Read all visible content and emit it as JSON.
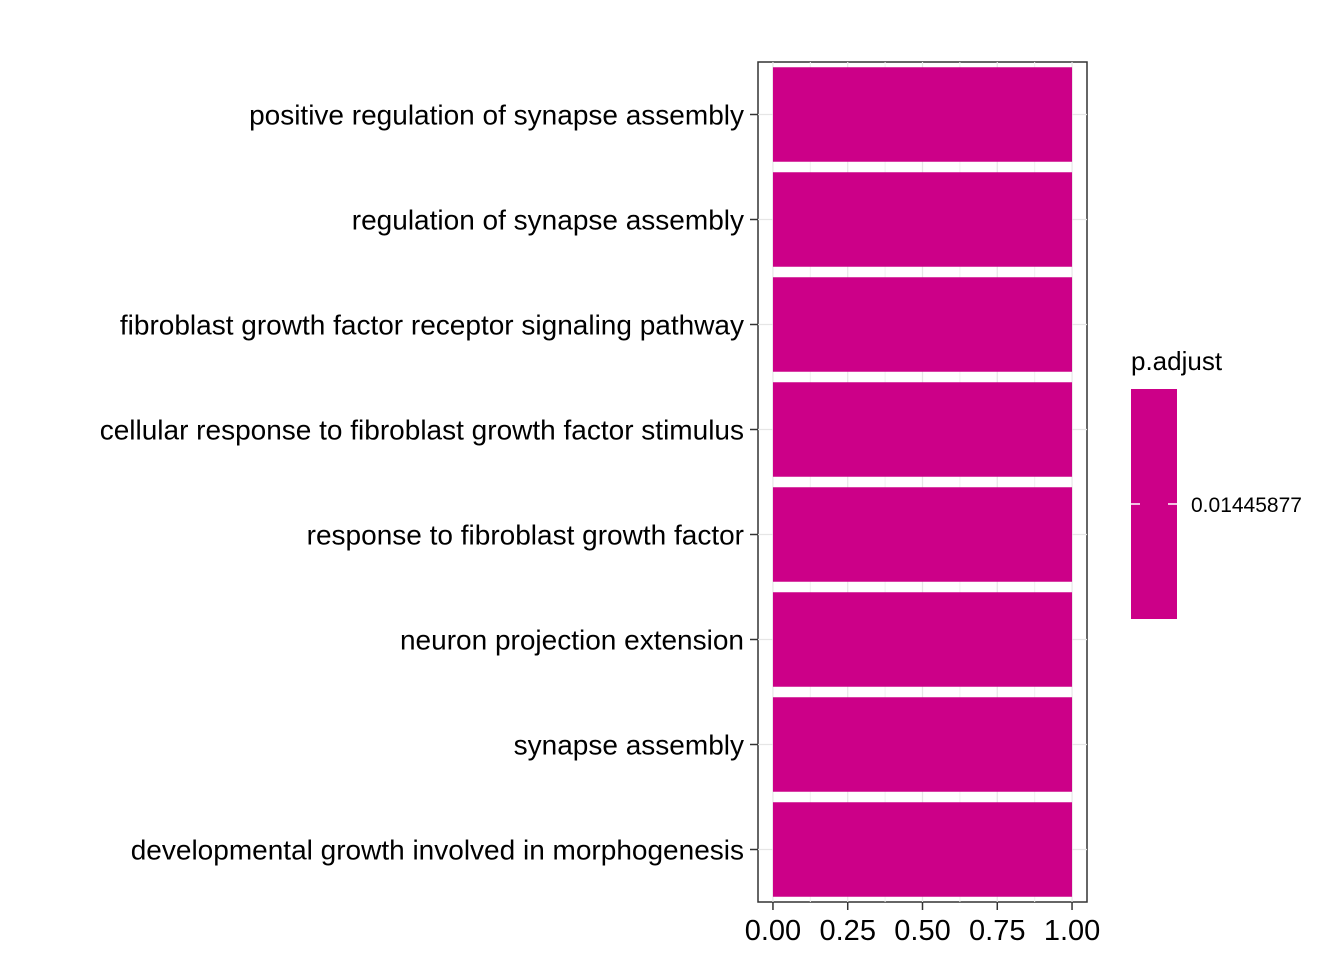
{
  "chart_data": {
    "type": "bar",
    "orientation": "horizontal",
    "categories": [
      "positive regulation of synapse assembly",
      "regulation of synapse assembly",
      "fibroblast growth factor receptor signaling pathway",
      "cellular response to fibroblast growth factor stimulus",
      "response to fibroblast growth factor",
      "neuron projection extension",
      "synapse assembly",
      "developmental growth involved in morphogenesis"
    ],
    "values": [
      1,
      1,
      1,
      1,
      1,
      1,
      1,
      1
    ],
    "p_adjust": [
      0.01445877,
      0.01445877,
      0.01445877,
      0.01445877,
      0.01445877,
      0.01445877,
      0.01445877,
      0.01445877
    ],
    "xlim": [
      -0.05,
      1.05
    ],
    "x_ticks": [
      0,
      0.25,
      0.5,
      0.75,
      1
    ],
    "x_tick_labels": [
      "0.00",
      "0.25",
      "0.50",
      "0.75",
      "1.00"
    ],
    "title": "",
    "xlabel": "",
    "ylabel": "",
    "grid": true,
    "bar_color": "#CC0088",
    "legend": {
      "title": "p.adjust",
      "placement": "right",
      "value_label": "0.01445877",
      "color": "#CC0088"
    }
  }
}
